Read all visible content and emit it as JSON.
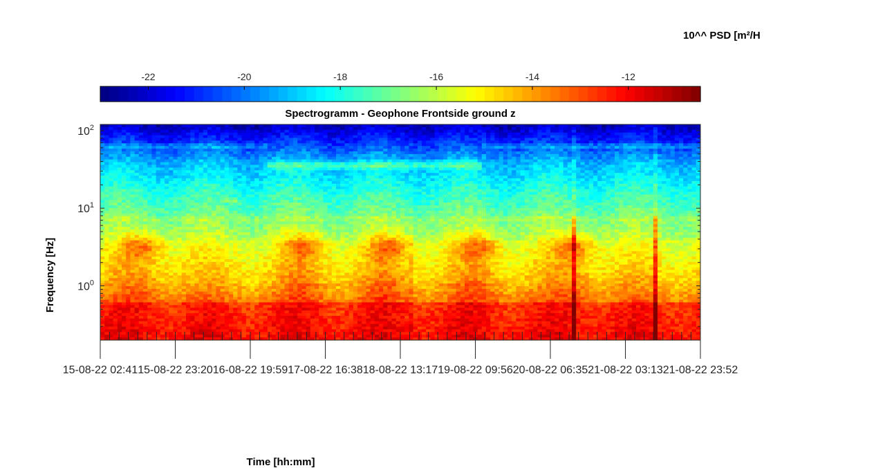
{
  "chart_data": {
    "type": "heatmap",
    "title": "Spectrogramm - Geophone Frontside ground z",
    "xlabel": "Time [hh:mm]",
    "ylabel": "Frequency [Hz]",
    "y_scale": "log",
    "ylim": [
      0.2,
      120
    ],
    "y_ticks": [
      {
        "value": 1,
        "base": "10",
        "exp": "0"
      },
      {
        "value": 10,
        "base": "10",
        "exp": "1"
      },
      {
        "value": 100,
        "base": "10",
        "exp": "2"
      }
    ],
    "x_ticks": [
      "15-08-22 02:41",
      "15-08-22 23:20",
      "16-08-22 19:59",
      "17-08-22 16:38",
      "18-08-22 13:17",
      "19-08-22 09:56",
      "20-08-22 06:35",
      "21-08-22 03:13",
      "21-08-22 23:52"
    ],
    "colorbar": {
      "label": "10^^ PSD [m²/H",
      "min": -23,
      "max": -10.5,
      "ticks": [
        -22,
        -20,
        -18,
        -16,
        -14,
        -12
      ],
      "colormap": "jet"
    },
    "features": {
      "activity_bursts_x_frac": [
        0.07,
        0.34,
        0.48,
        0.63,
        0.79
      ],
      "persistent_line_hz": 7.3,
      "secondary_line_hz": 1.0,
      "transients_x_frac": [
        0.515,
        0.79,
        0.925
      ],
      "high_band_shift_x_frac": [
        0.28,
        0.635
      ]
    }
  }
}
